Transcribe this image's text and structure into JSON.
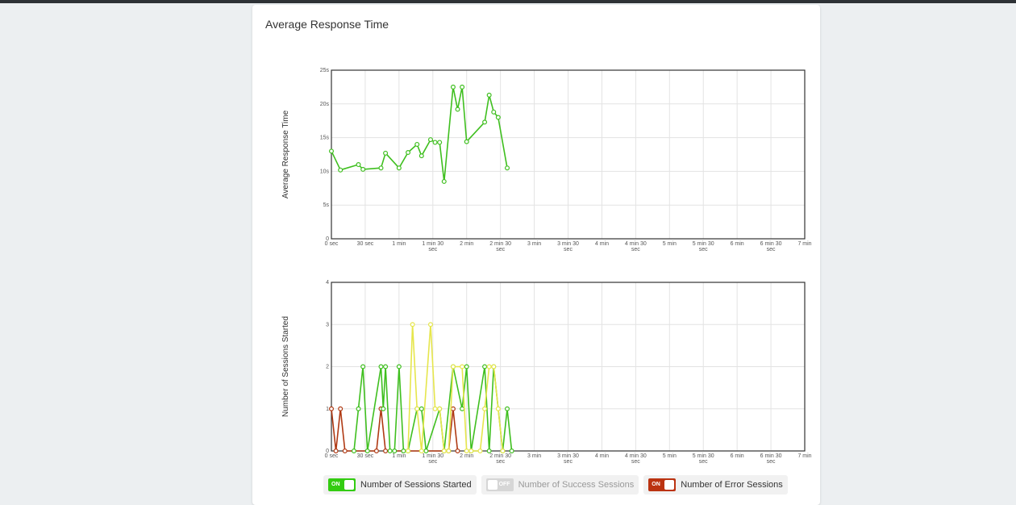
{
  "page": {
    "title": "Average Response Time"
  },
  "legend": {
    "items": [
      {
        "id": "started",
        "label": "Number of Sessions Started",
        "state": "ON",
        "on": true,
        "color": "#33cc11"
      },
      {
        "id": "success",
        "label": "Number of Success Sessions",
        "state": "OFF",
        "on": false,
        "color": "#dddd33"
      },
      {
        "id": "error",
        "label": "Number of Error Sessions",
        "state": "ON",
        "on": true,
        "color": "#bb3311"
      }
    ]
  },
  "colors": {
    "started": "#3fbf1f",
    "success": "#e6e64c",
    "error": "#b03a14",
    "grid": "#e3e3e3",
    "frame": "#333333"
  },
  "chart_data": [
    {
      "type": "line",
      "ylabel": "Average Response Time",
      "xlim": [
        0,
        420
      ],
      "ylim": [
        0,
        25
      ],
      "x_ticks": [
        {
          "v": 0,
          "lines": [
            "0 sec"
          ]
        },
        {
          "v": 30,
          "lines": [
            "30 sec"
          ]
        },
        {
          "v": 60,
          "lines": [
            "1 min"
          ]
        },
        {
          "v": 90,
          "lines": [
            "1 min 30",
            "sec"
          ]
        },
        {
          "v": 120,
          "lines": [
            "2 min"
          ]
        },
        {
          "v": 150,
          "lines": [
            "2 min 30",
            "sec"
          ]
        },
        {
          "v": 180,
          "lines": [
            "3 min"
          ]
        },
        {
          "v": 210,
          "lines": [
            "3 min 30",
            "sec"
          ]
        },
        {
          "v": 240,
          "lines": [
            "4 min"
          ]
        },
        {
          "v": 270,
          "lines": [
            "4 min 30",
            "sec"
          ]
        },
        {
          "v": 300,
          "lines": [
            "5 min"
          ]
        },
        {
          "v": 330,
          "lines": [
            "5 min 30",
            "sec"
          ]
        },
        {
          "v": 360,
          "lines": [
            "6 min"
          ]
        },
        {
          "v": 390,
          "lines": [
            "6 min 30",
            "sec"
          ]
        },
        {
          "v": 420,
          "lines": [
            "7 min"
          ]
        }
      ],
      "y_ticks": [
        {
          "v": 0,
          "label": "0"
        },
        {
          "v": 5,
          "label": "5s"
        },
        {
          "v": 10,
          "label": "10s"
        },
        {
          "v": 15,
          "label": "15s"
        },
        {
          "v": 20,
          "label": "20s"
        },
        {
          "v": 25,
          "label": "25s"
        }
      ],
      "series": [
        {
          "key": "started",
          "x": [
            0,
            8,
            24,
            28,
            44,
            48,
            60,
            68,
            76,
            80,
            88,
            92,
            96,
            100,
            108,
            112,
            116,
            120,
            136,
            140,
            144,
            148,
            156
          ],
          "values": [
            13,
            10.2,
            11,
            10.3,
            10.5,
            12.7,
            10.5,
            12.8,
            14,
            12.3,
            14.7,
            14.3,
            14.3,
            8.5,
            22.5,
            19.2,
            22.5,
            14.4,
            17.3,
            21.3,
            18.8,
            18,
            10.5
          ]
        }
      ]
    },
    {
      "type": "line",
      "ylabel": "Number of Sessions Started",
      "xlim": [
        0,
        420
      ],
      "ylim": [
        0,
        4
      ],
      "x_ticks": [
        {
          "v": 0,
          "lines": [
            "0 sec"
          ]
        },
        {
          "v": 30,
          "lines": [
            "30 sec"
          ]
        },
        {
          "v": 60,
          "lines": [
            "1 min"
          ]
        },
        {
          "v": 90,
          "lines": [
            "1 min 30",
            "sec"
          ]
        },
        {
          "v": 120,
          "lines": [
            "2 min"
          ]
        },
        {
          "v": 150,
          "lines": [
            "2 min 30",
            "sec"
          ]
        },
        {
          "v": 180,
          "lines": [
            "3 min"
          ]
        },
        {
          "v": 210,
          "lines": [
            "3 min 30",
            "sec"
          ]
        },
        {
          "v": 240,
          "lines": [
            "4 min"
          ]
        },
        {
          "v": 270,
          "lines": [
            "4 min 30",
            "sec"
          ]
        },
        {
          "v": 300,
          "lines": [
            "5 min"
          ]
        },
        {
          "v": 330,
          "lines": [
            "5 min 30",
            "sec"
          ]
        },
        {
          "v": 360,
          "lines": [
            "6 min"
          ]
        },
        {
          "v": 390,
          "lines": [
            "6 min 30",
            "sec"
          ]
        },
        {
          "v": 420,
          "lines": [
            "7 min"
          ]
        }
      ],
      "y_ticks": [
        {
          "v": 0,
          "label": "0"
        },
        {
          "v": 1,
          "label": "1"
        },
        {
          "v": 2,
          "label": "2"
        },
        {
          "v": 3,
          "label": "3"
        },
        {
          "v": 4,
          "label": "4"
        }
      ],
      "series": [
        {
          "key": "started",
          "x": [
            20,
            24,
            28,
            32,
            44,
            46,
            48,
            52,
            56,
            60,
            64,
            68,
            76,
            80,
            84,
            96,
            100,
            108,
            116,
            120,
            124,
            136,
            140,
            144,
            152,
            156,
            160
          ],
          "values": [
            0,
            1,
            2,
            0,
            2,
            1,
            2,
            0,
            0,
            2,
            0,
            0,
            1,
            1,
            0,
            1,
            0,
            2,
            1,
            2,
            0,
            2,
            0,
            2,
            0,
            1,
            0
          ]
        },
        {
          "key": "success",
          "x": [
            68,
            72,
            76,
            80,
            88,
            92,
            96,
            100,
            104,
            108,
            116,
            120,
            124,
            132,
            136,
            140,
            144,
            148,
            152
          ],
          "values": [
            0,
            3,
            1,
            0,
            3,
            1,
            1,
            0,
            0,
            2,
            2,
            0,
            0,
            0,
            1,
            2,
            2,
            1,
            0
          ]
        },
        {
          "key": "error",
          "x": [
            0,
            4,
            8,
            12,
            40,
            44,
            48,
            104,
            108,
            112
          ],
          "values": [
            1,
            0,
            1,
            0,
            0,
            1,
            0,
            0,
            1,
            0
          ]
        }
      ]
    }
  ]
}
